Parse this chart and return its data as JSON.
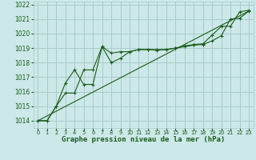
{
  "xlabel": "Graphe pression niveau de la mer (hPa)",
  "background_color": "#cce8e8",
  "grid_color": "#aacccc",
  "line_color": "#1a5c1a",
  "label_color": "#1a5c1a",
  "ylim": [
    1013.5,
    1022.2
  ],
  "xlim": [
    -0.5,
    23.5
  ],
  "yticks": [
    1014,
    1015,
    1016,
    1017,
    1018,
    1019,
    1020,
    1021,
    1022
  ],
  "xticks": [
    0,
    1,
    2,
    3,
    4,
    5,
    6,
    7,
    8,
    9,
    10,
    11,
    12,
    13,
    14,
    15,
    16,
    17,
    18,
    19,
    20,
    21,
    22,
    23
  ],
  "series1_x": [
    0,
    1,
    2,
    3,
    4,
    5,
    6,
    7,
    8,
    9,
    10,
    11,
    12,
    13,
    14,
    15,
    16,
    17,
    18,
    19,
    20,
    21,
    22,
    23
  ],
  "series1_y": [
    1014.0,
    1014.0,
    1015.0,
    1015.9,
    1015.9,
    1017.5,
    1017.5,
    1019.1,
    1018.65,
    1018.75,
    1018.75,
    1018.9,
    1018.9,
    1018.9,
    1018.9,
    1019.0,
    1019.1,
    1019.2,
    1019.25,
    1019.5,
    1019.85,
    1021.0,
    1021.05,
    1021.55
  ],
  "series2_x": [
    0,
    1,
    2,
    3,
    4,
    5,
    6,
    7,
    8,
    9,
    10,
    11,
    12,
    13,
    14,
    15,
    16,
    17,
    18,
    19,
    20,
    21,
    22,
    23
  ],
  "series2_y": [
    1014.0,
    1014.0,
    1015.0,
    1016.6,
    1017.5,
    1016.5,
    1016.5,
    1019.1,
    1018.0,
    1018.3,
    1018.75,
    1018.9,
    1018.9,
    1018.85,
    1018.9,
    1019.0,
    1019.15,
    1019.25,
    1019.3,
    1019.9,
    1020.5,
    1020.5,
    1021.5,
    1021.6
  ],
  "trend_x": [
    0,
    23
  ],
  "trend_y": [
    1014.0,
    1021.55
  ],
  "ytick_fontsize": 5.5,
  "xtick_fontsize": 4.8,
  "xlabel_fontsize": 6.5
}
